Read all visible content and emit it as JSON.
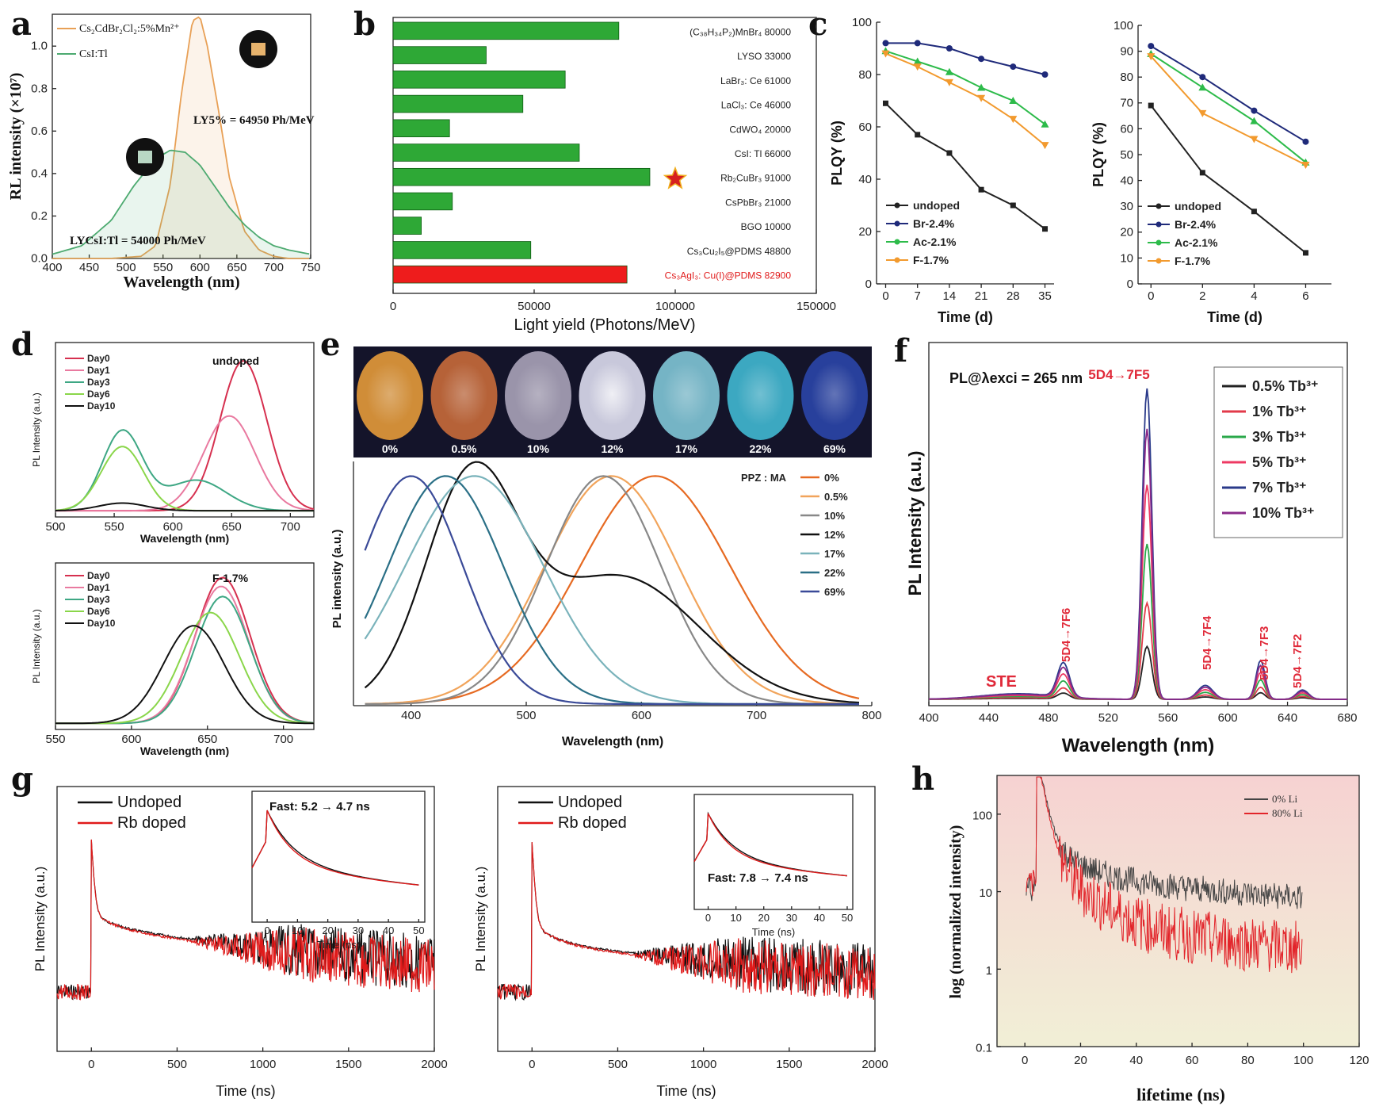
{
  "figure": {
    "panel_letters": [
      "a",
      "b",
      "c",
      "d",
      "e",
      "f",
      "g",
      "h"
    ]
  },
  "chart_data": [
    {
      "panel": "a",
      "type": "line",
      "xlabel": "Wavelength (nm)",
      "ylabel": "RL intensity (×10⁷)",
      "xlim": [
        400,
        750
      ],
      "ylim": [
        0,
        1.15
      ],
      "xticks": [
        "400",
        "450",
        "500",
        "550",
        "600",
        "650",
        "700",
        "750"
      ],
      "yticks": [
        "0.0",
        "0.2",
        "0.4",
        "0.6",
        "0.8",
        "1.0"
      ],
      "series": [
        {
          "name": "Cs₂CdBr₂Cl₂:5%Mn²⁺",
          "color": "#e8a056",
          "x": [
            400,
            480,
            520,
            540,
            560,
            575,
            590,
            600,
            610,
            625,
            640,
            660,
            680,
            700,
            720,
            750
          ],
          "y": [
            0,
            0,
            0.01,
            0.06,
            0.35,
            0.78,
            1.12,
            1.14,
            1.0,
            0.7,
            0.38,
            0.13,
            0.04,
            0.01,
            0,
            0
          ]
        },
        {
          "name": "CsI:Tl",
          "color": "#4daa70",
          "x": [
            400,
            440,
            480,
            510,
            540,
            560,
            580,
            600,
            620,
            640,
            660,
            680,
            700,
            720,
            750
          ],
          "y": [
            0.02,
            0.06,
            0.18,
            0.34,
            0.47,
            0.51,
            0.5,
            0.44,
            0.34,
            0.24,
            0.16,
            0.1,
            0.06,
            0.04,
            0.02
          ]
        }
      ],
      "annotations": [
        "LY5% = 64950 Ph/MeV",
        "LYCsI:Tl = 54000 Ph/MeV"
      ]
    },
    {
      "panel": "b",
      "type": "bar",
      "orientation": "horizontal",
      "xlabel": "Light yield (Photons/MeV)",
      "xlim": [
        0,
        150000
      ],
      "xticks": [
        "0",
        "50000",
        "100000",
        "150000"
      ],
      "categories": [
        "(C₃₈H₃₄P₂)MnBr₄ 80000",
        "LYSO 33000",
        "LaBr₃: Ce 61000",
        "LaCl₃: Ce 46000",
        "CdWO₄ 20000",
        "CsI: Tl 66000",
        "Rb₂CuBr₃ 91000",
        "CsPbBr₃ 21000",
        "BGO 10000",
        "Cs₃Cu₂I₅@PDMS 48800",
        "Cs₃AgI₃: Cu(I)@PDMS 82900"
      ],
      "values": [
        80000,
        33000,
        61000,
        46000,
        20000,
        66000,
        91000,
        21000,
        10000,
        48800,
        82900
      ],
      "colors": [
        "#2ea836",
        "#2ea836",
        "#2ea836",
        "#2ea836",
        "#2ea836",
        "#2ea836",
        "#2ea836",
        "#2ea836",
        "#2ea836",
        "#2ea836",
        "#ee1c1c"
      ]
    },
    {
      "panel": "c-left",
      "type": "line",
      "xlabel": "Time (d)",
      "ylabel": "PLQY (%)",
      "x": [
        0,
        7,
        14,
        21,
        28,
        35
      ],
      "xticks": [
        "0",
        "7",
        "14",
        "21",
        "28",
        "35"
      ],
      "ylim": [
        0,
        100
      ],
      "yticks": [
        "0",
        "20",
        "40",
        "60",
        "80",
        "100"
      ],
      "series": [
        {
          "name": "undoped",
          "color": "#222222",
          "values": [
            69,
            57,
            50,
            36,
            30,
            21
          ]
        },
        {
          "name": "Br-2.4%",
          "color": "#1f2a7a",
          "values": [
            92,
            92,
            90,
            86,
            83,
            80
          ]
        },
        {
          "name": "Ac-2.1%",
          "color": "#2dbb4a",
          "values": [
            89,
            85,
            81,
            75,
            70,
            61
          ]
        },
        {
          "name": "F-1.7%",
          "color": "#f29a2e",
          "values": [
            88,
            83,
            77,
            71,
            63,
            53
          ]
        }
      ]
    },
    {
      "panel": "c-right",
      "type": "line",
      "xlabel": "Time (d)",
      "ylabel": "PLQY (%)",
      "x": [
        0,
        2,
        4,
        6
      ],
      "xticks": [
        "0",
        "2",
        "4",
        "6"
      ],
      "ylim": [
        0,
        100
      ],
      "yticks": [
        "0",
        "10",
        "20",
        "30",
        "40",
        "50",
        "60",
        "70",
        "80",
        "90",
        "100"
      ],
      "series": [
        {
          "name": "undoped",
          "color": "#222222",
          "values": [
            69,
            43,
            28,
            12
          ]
        },
        {
          "name": "Br-2.4%",
          "color": "#1f2a7a",
          "values": [
            92,
            80,
            67,
            55
          ]
        },
        {
          "name": "Ac-2.1%",
          "color": "#2dbb4a",
          "values": [
            89,
            76,
            63,
            47
          ]
        },
        {
          "name": "F-1.7%",
          "color": "#f29a2e",
          "values": [
            88,
            66,
            56,
            46
          ]
        }
      ]
    },
    {
      "panel": "d-top",
      "type": "line",
      "title": "undoped",
      "xlabel": "Wavelength (nm)",
      "ylabel": "PL Intensity (a.u.)",
      "xlim": [
        500,
        720
      ],
      "xticks": [
        "500",
        "550",
        "600",
        "650",
        "700"
      ],
      "series": [
        {
          "name": "Day0",
          "color": "#d6304f",
          "peaks": [
            [
              660,
              0.98,
              20
            ]
          ]
        },
        {
          "name": "Day1",
          "color": "#e97aa0",
          "peaks": [
            [
              648,
              0.62,
              22
            ]
          ]
        },
        {
          "name": "Day3",
          "color": "#3ea784",
          "peaks": [
            [
              557,
              0.52,
              17
            ],
            [
              620,
              0.2,
              25
            ]
          ]
        },
        {
          "name": "Day6",
          "color": "#8ad64a",
          "peaks": [
            [
              557,
              0.42,
              18
            ]
          ]
        },
        {
          "name": "Day10",
          "color": "#111111",
          "peaks": [
            [
              557,
              0.05,
              20
            ]
          ]
        }
      ]
    },
    {
      "panel": "d-bottom",
      "type": "line",
      "title": "F-1.7%",
      "xlabel": "Wavelength (nm)",
      "ylabel": "PL Intensity (a.u.)",
      "xlim": [
        550,
        720
      ],
      "xticks": [
        "550",
        "600",
        "650",
        "700"
      ],
      "series": [
        {
          "name": "Day0",
          "color": "#d6304f",
          "peaks": [
            [
              660,
              1.0,
              18
            ]
          ]
        },
        {
          "name": "Day1",
          "color": "#e97aa0",
          "peaks": [
            [
              659,
              0.94,
              18
            ]
          ]
        },
        {
          "name": "Day3",
          "color": "#3ea784",
          "peaks": [
            [
              660,
              0.87,
              18
            ]
          ]
        },
        {
          "name": "Day6",
          "color": "#8ad64a",
          "peaks": [
            [
              652,
              0.76,
              19
            ]
          ]
        },
        {
          "name": "Day10",
          "color": "#111111",
          "peaks": [
            [
              641,
              0.67,
              20
            ]
          ]
        }
      ]
    },
    {
      "panel": "e",
      "type": "line",
      "xlabel": "Wavelength (nm)",
      "ylabel": "PL intensity (a.u.)",
      "legend_title": "PPZ : MA",
      "xlim": [
        350,
        800
      ],
      "xticks": [
        "400",
        "500",
        "600",
        "700",
        "800"
      ],
      "photo_labels": [
        "0%",
        "0.5%",
        "10%",
        "12%",
        "17%",
        "22%",
        "69%"
      ],
      "series": [
        {
          "name": "0%",
          "color": "#e66a22",
          "peaks": [
            [
              612,
              1.0,
              65
            ]
          ]
        },
        {
          "name": "0.5%",
          "color": "#f1a45b",
          "peaks": [
            [
              574,
              1.0,
              58
            ]
          ]
        },
        {
          "name": "10%",
          "color": "#888888",
          "peaks": [
            [
              567,
              1.0,
              50
            ]
          ]
        },
        {
          "name": "12%",
          "color": "#111111",
          "peaks": [
            [
              452,
              0.95,
              40
            ],
            [
              580,
              0.56,
              70
            ]
          ]
        },
        {
          "name": "17%",
          "color": "#7ab3bb",
          "peaks": [
            [
              455,
              1.0,
              60
            ]
          ]
        },
        {
          "name": "22%",
          "color": "#2a6f86",
          "peaks": [
            [
              430,
              1.0,
              50
            ]
          ]
        },
        {
          "name": "69%",
          "color": "#3a4a98",
          "peaks": [
            [
              400,
              1.0,
              45
            ]
          ]
        }
      ]
    },
    {
      "panel": "f",
      "type": "line",
      "title": "PL@λexci = 265 nm",
      "xlabel": "Wavelength (nm)",
      "ylabel": "PL Intensity (a.u.)",
      "xlim": [
        400,
        680
      ],
      "xticks": [
        "400",
        "440",
        "480",
        "520",
        "560",
        "600",
        "640",
        "680"
      ],
      "annotations": [
        "STE",
        "5D4→7F6",
        "5D4→7F5",
        "5D4→7F4",
        "5D4→7F3",
        "5D4→7F2"
      ],
      "series": [
        {
          "name": "0.5% Tb³⁺",
          "color": "#222222",
          "scale": 0.17
        },
        {
          "name": "1% Tb³⁺",
          "color": "#e23a4a",
          "scale": 0.31
        },
        {
          "name": "3% Tb³⁺",
          "color": "#2aa84a",
          "scale": 0.5
        },
        {
          "name": "5% Tb³⁺",
          "color": "#ee3a63",
          "scale": 0.69
        },
        {
          "name": "7% Tb³⁺",
          "color": "#2a3a8a",
          "scale": 1.0
        },
        {
          "name": "10% Tb³⁺",
          "color": "#8a2a8a",
          "scale": 0.87
        }
      ]
    },
    {
      "panel": "g-left",
      "type": "line",
      "xlabel": "Time (ns)",
      "ylabel": "PL Intensity (a.u.)",
      "xlim": [
        -200,
        2000
      ],
      "xticks": [
        "0",
        "500",
        "1000",
        "1500",
        "2000"
      ],
      "series": [
        {
          "name": "Undoped",
          "color": "#111111"
        },
        {
          "name": "Rb doped",
          "color": "#e01a1a"
        }
      ],
      "inset": {
        "text": "Fast: 5.2 → 4.7 ns",
        "xlabel": "Time (ns)",
        "xticks": [
          "0",
          "10",
          "20",
          "30",
          "40",
          "50"
        ]
      }
    },
    {
      "panel": "g-right",
      "type": "line",
      "xlabel": "Time (ns)",
      "ylabel": "PL Intensity (a.u.)",
      "xlim": [
        -200,
        2000
      ],
      "xticks": [
        "0",
        "500",
        "1000",
        "1500",
        "2000"
      ],
      "series": [
        {
          "name": "Undoped",
          "color": "#111111"
        },
        {
          "name": "Rb doped",
          "color": "#e01a1a"
        }
      ],
      "inset": {
        "text": "Fast: 7.8 → 7.4 ns",
        "xlabel": "Time (ns)",
        "xticks": [
          "0",
          "10",
          "20",
          "30",
          "40",
          "50"
        ]
      }
    },
    {
      "panel": "h",
      "type": "line",
      "xlabel": "lifetime (ns)",
      "ylabel": "log (normalized intensity)",
      "xlim": [
        -10,
        120
      ],
      "xticks": [
        "0",
        "20",
        "40",
        "60",
        "80",
        "100",
        "120"
      ],
      "yticks": [
        "0.1",
        "1",
        "10",
        "100"
      ],
      "yscale": "log",
      "series": [
        {
          "name": "0% Li",
          "color": "#444444"
        },
        {
          "name": "80% Li",
          "color": "#e2242a"
        }
      ]
    }
  ]
}
